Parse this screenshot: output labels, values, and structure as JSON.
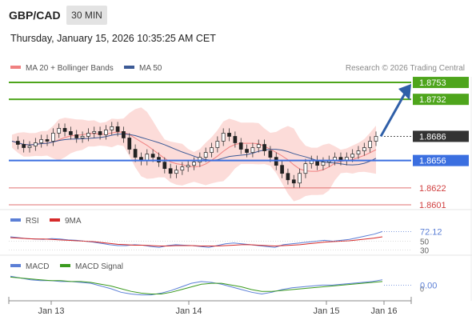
{
  "header": {
    "pair": "GBP/CAD",
    "timeframe": "30 MIN",
    "datetime": "Thursday, January 15, 2026 10:35:25 AM CET",
    "source": "Research © 2026 Trading Central"
  },
  "legend": {
    "ma20": {
      "label": "MA 20 + Bollinger Bands",
      "color": "#f08080"
    },
    "ma50": {
      "label": "MA 50",
      "color": "#3c5a96"
    },
    "rsi": {
      "label": "RSI",
      "color": "#5b7fd6"
    },
    "rsi_ma": {
      "label": "9MA",
      "color": "#d62b2b"
    },
    "macd": {
      "label": "MACD",
      "color": "#5b7fd6"
    },
    "macd_signal": {
      "label": "MACD Signal",
      "color": "#3a9a1e"
    }
  },
  "chart_data": [
    {
      "type": "candlestick",
      "title": "GBP/CAD 30 MIN",
      "x_ticks": [
        "Jan 13",
        "Jan 14",
        "Jan 15",
        "Jan 16"
      ],
      "ylim": [
        1.8595,
        1.876
      ],
      "levels": [
        {
          "value": 1.8753,
          "label": "1.8753",
          "kind": "resistance",
          "color": "#4ea51c"
        },
        {
          "value": 1.8732,
          "label": "1.8732",
          "kind": "resistance",
          "color": "#4ea51c"
        },
        {
          "value": 1.8686,
          "label": "1.8686",
          "kind": "current",
          "color": "#333333"
        },
        {
          "value": 1.8656,
          "label": "1.8656",
          "kind": "pivot",
          "color": "#3b6fe0"
        },
        {
          "value": 1.8622,
          "label": "1.8622",
          "kind": "support",
          "color": "#e07070"
        },
        {
          "value": 1.8601,
          "label": "1.8601",
          "kind": "support",
          "color": "#e07070"
        }
      ],
      "close_series": [
        1.868,
        1.8676,
        1.8672,
        1.8674,
        1.8678,
        1.8682,
        1.868,
        1.869,
        1.8696,
        1.8692,
        1.8688,
        1.8684,
        1.8686,
        1.869,
        1.8692,
        1.8688,
        1.8694,
        1.8698,
        1.8692,
        1.8684,
        1.867,
        1.866,
        1.8656,
        1.8664,
        1.866,
        1.8654,
        1.8646,
        1.864,
        1.8644,
        1.8648,
        1.865,
        1.8654,
        1.866,
        1.8666,
        1.8672,
        1.868,
        1.869,
        1.8686,
        1.8678,
        1.867,
        1.8666,
        1.8672,
        1.8676,
        1.8668,
        1.866,
        1.865,
        1.864,
        1.8632,
        1.8628,
        1.864,
        1.8652,
        1.8656,
        1.865,
        1.8654,
        1.8656,
        1.866,
        1.8656,
        1.866,
        1.8664,
        1.8668,
        1.8672,
        1.868,
        1.8686
      ],
      "annotation": "arrow up to 1.8753"
    },
    {
      "type": "line",
      "title": "RSI",
      "series": [
        {
          "name": "RSI",
          "values": [
            60,
            58,
            56,
            55,
            54,
            56,
            55,
            53,
            52,
            50,
            48,
            45,
            42,
            40,
            40,
            42,
            41,
            38,
            36,
            40,
            42,
            41,
            40,
            38,
            36,
            40,
            44,
            46,
            44,
            42,
            40,
            38,
            36,
            42,
            44,
            46,
            48,
            50,
            52,
            50,
            52,
            54,
            58,
            62,
            66,
            72
          ]
        },
        {
          "name": "9MA",
          "values": [
            58,
            57,
            56,
            55,
            55,
            54,
            53,
            52,
            51,
            50,
            49,
            47,
            45,
            43,
            42,
            41,
            41,
            40,
            39,
            39,
            40,
            40,
            40,
            39,
            39,
            39,
            40,
            41,
            42,
            42,
            41,
            40,
            39,
            40,
            41,
            42,
            44,
            46,
            48,
            49,
            50,
            51,
            53,
            55,
            57,
            60
          ]
        }
      ],
      "ylim": [
        20,
        80
      ],
      "tick_labels": [
        "50",
        "30"
      ],
      "last_value": "72.12"
    },
    {
      "type": "line",
      "title": "MACD",
      "series": [
        {
          "name": "MACD",
          "values": [
            0.001,
            0.0008,
            0.0006,
            0.0005,
            0.0005,
            0.0004,
            0.0004,
            0.0003,
            0.0002,
            -0.0001,
            -0.0004,
            -0.0008,
            -0.001,
            -0.0011,
            -0.0011,
            -0.0009,
            -0.0006,
            -0.0002,
            0.0002,
            0.0004,
            0.0003,
            0.0001,
            -0.0002,
            -0.0005,
            -0.0008,
            -0.001,
            -0.0008,
            -0.0005,
            -0.0003,
            -0.0002,
            -0.0001,
            0.0,
            0.0,
            0.0001,
            0.0002,
            0.0003,
            0.0004,
            0.0006
          ]
        },
        {
          "name": "MACD Signal",
          "values": [
            0.0009,
            0.0008,
            0.0007,
            0.0006,
            0.0005,
            0.0005,
            0.0004,
            0.0004,
            0.0003,
            0.0001,
            -0.0001,
            -0.0004,
            -0.0007,
            -0.0009,
            -0.001,
            -0.001,
            -0.0008,
            -0.0005,
            -0.0002,
            0.0001,
            0.0002,
            0.0002,
            0.0,
            -0.0002,
            -0.0005,
            -0.0007,
            -0.0007,
            -0.0006,
            -0.0005,
            -0.0004,
            -0.0003,
            -0.0002,
            -0.0001,
            0.0,
            0.0001,
            0.0002,
            0.0003,
            0.0004
          ]
        }
      ],
      "ylim": [
        -0.0014,
        0.0012
      ],
      "tick_labels": [
        "0"
      ],
      "last_value": "0.00"
    }
  ]
}
